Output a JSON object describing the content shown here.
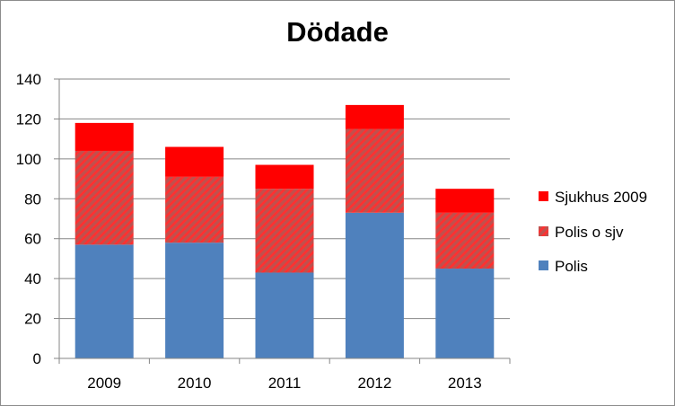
{
  "chart_data": {
    "type": "bar",
    "stacked": true,
    "title": "Dödade",
    "categories": [
      "2009",
      "2010",
      "2011",
      "2012",
      "2013"
    ],
    "series": [
      {
        "name": "Polis",
        "values": [
          57,
          58,
          43,
          73,
          45
        ],
        "color": "#4f81bd",
        "pattern": "solid"
      },
      {
        "name": "Polis o sjv",
        "values": [
          47,
          33,
          42,
          42,
          28
        ],
        "color": "#c0504d",
        "pattern": "diagonal-stripe-red"
      },
      {
        "name": "Sjukhus 2009",
        "values": [
          14,
          15,
          12,
          12,
          12
        ],
        "color": "#ff0000",
        "pattern": "solid"
      }
    ],
    "ylim": [
      0,
      140
    ],
    "yticks": [
      0,
      20,
      40,
      60,
      80,
      100,
      120,
      140
    ],
    "grid": true,
    "legend_position": "right"
  }
}
